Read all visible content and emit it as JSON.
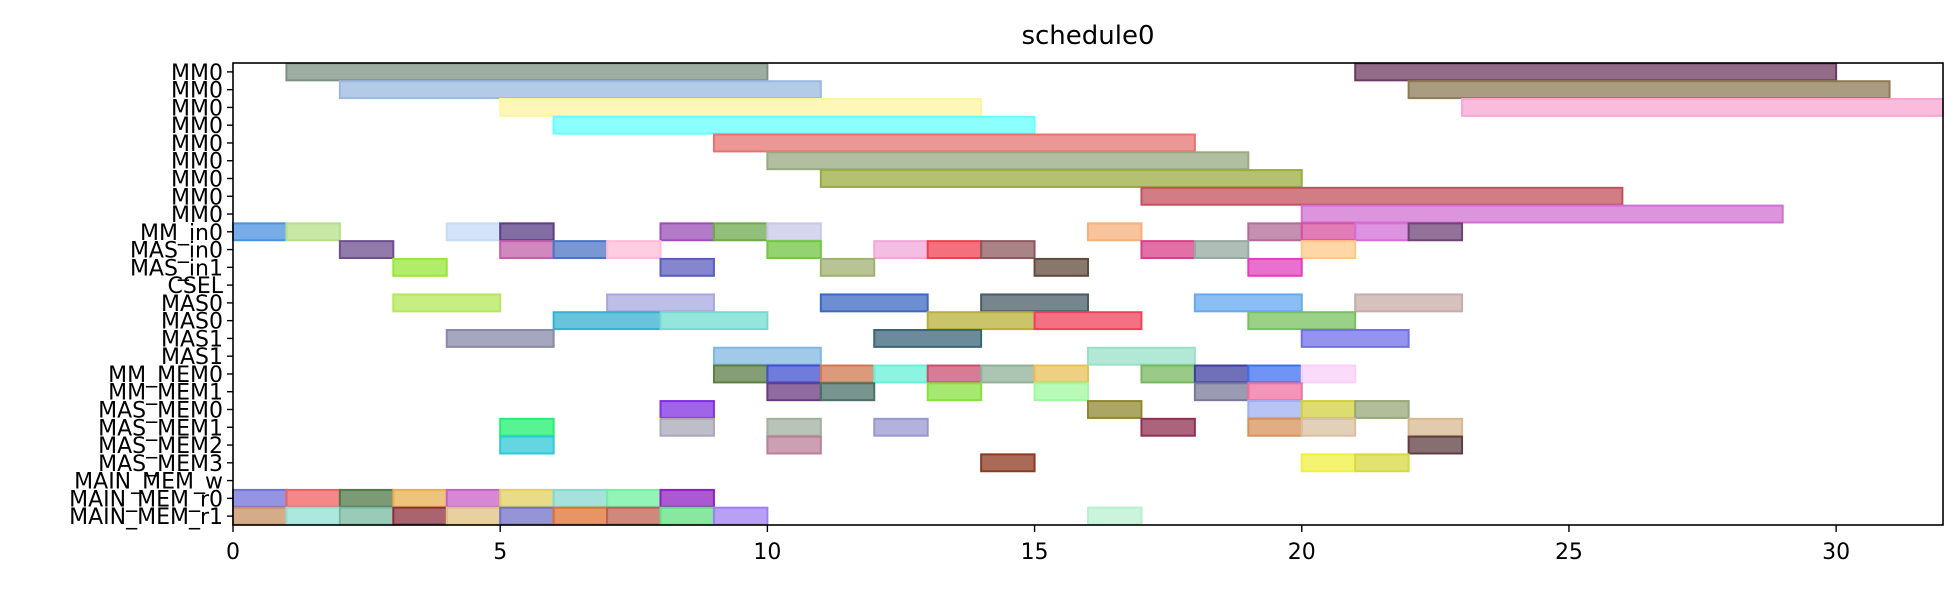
{
  "chart_data": {
    "type": "gantt",
    "title": "schedule0",
    "xlim": [
      0,
      32
    ],
    "x_ticks": [
      0,
      5,
      10,
      15,
      20,
      25,
      30
    ],
    "grid": false,
    "rows": [
      "MM0",
      "MM0",
      "MM0",
      "MM0",
      "MM0",
      "MM0",
      "MM0",
      "MM0",
      "MM0",
      "MM_in0",
      "MAS_in0",
      "MAS_in1",
      "CSEL",
      "MAS0",
      "MAS0",
      "MAS1",
      "MAS1",
      "MM_MEM0",
      "MM_MEM1",
      "MAS_MEM0",
      "MAS_MEM1",
      "MAS_MEM2",
      "MAS_MEM3",
      "MAIN_MEM_w",
      "MAIN_MEM_r0",
      "MAIN_MEM_r1"
    ],
    "tasks": [
      {
        "row": 0,
        "start": 1,
        "end": 10,
        "color": "#7d9183"
      },
      {
        "row": 0,
        "start": 21,
        "end": 30,
        "color": "#6e3b60"
      },
      {
        "row": 1,
        "start": 2,
        "end": 11,
        "color": "#9bb9e0"
      },
      {
        "row": 1,
        "start": 22,
        "end": 31,
        "color": "#8c7b55"
      },
      {
        "row": 2,
        "start": 5,
        "end": 14,
        "color": "#fff4a0"
      },
      {
        "row": 2,
        "start": 23,
        "end": 32,
        "color": "#f9a4d2"
      },
      {
        "row": 3,
        "start": 6,
        "end": 15,
        "color": "#66ffff"
      },
      {
        "row": 4,
        "start": 9,
        "end": 18,
        "color": "#e57373"
      },
      {
        "row": 5,
        "start": 10,
        "end": 19,
        "color": "#97aa80"
      },
      {
        "row": 6,
        "start": 11,
        "end": 20,
        "color": "#9aac40"
      },
      {
        "row": 7,
        "start": 17,
        "end": 26,
        "color": "#c3505d"
      },
      {
        "row": 8,
        "start": 20,
        "end": 29,
        "color": "#d070d0"
      },
      {
        "row": 9,
        "start": 0,
        "end": 1,
        "color": "#4a90e2"
      },
      {
        "row": 9,
        "start": 1,
        "end": 2,
        "color": "#b4e08a"
      },
      {
        "row": 9,
        "start": 4,
        "end": 5,
        "color": "#c6dbf5"
      },
      {
        "row": 9,
        "start": 5,
        "end": 6,
        "color": "#5a3d86"
      },
      {
        "row": 9,
        "start": 8,
        "end": 9,
        "color": "#9b4db8"
      },
      {
        "row": 9,
        "start": 9,
        "end": 10,
        "color": "#6daa4c"
      },
      {
        "row": 9,
        "start": 10,
        "end": 11,
        "color": "#c8c8ea"
      },
      {
        "row": 9,
        "start": 16,
        "end": 17,
        "color": "#f7b07a"
      },
      {
        "row": 9,
        "start": 19,
        "end": 20,
        "color": "#b06b98"
      },
      {
        "row": 9,
        "start": 20,
        "end": 21,
        "color": "#d8509f"
      },
      {
        "row": 9,
        "start": 21,
        "end": 22,
        "color": "#d36fd6"
      },
      {
        "row": 9,
        "start": 22,
        "end": 23,
        "color": "#6e4375"
      },
      {
        "row": 10,
        "start": 2,
        "end": 3,
        "color": "#6e4e8e"
      },
      {
        "row": 10,
        "start": 5,
        "end": 6,
        "color": "#c060a8"
      },
      {
        "row": 10,
        "start": 6,
        "end": 7,
        "color": "#4c74c4"
      },
      {
        "row": 10,
        "start": 7,
        "end": 8,
        "color": "#ffbcd8"
      },
      {
        "row": 10,
        "start": 10,
        "end": 11,
        "color": "#70c640"
      },
      {
        "row": 10,
        "start": 12,
        "end": 13,
        "color": "#f0a8d8"
      },
      {
        "row": 10,
        "start": 13,
        "end": 14,
        "color": "#f04050"
      },
      {
        "row": 10,
        "start": 14,
        "end": 15,
        "color": "#8c5a5e"
      },
      {
        "row": 10,
        "start": 17,
        "end": 18,
        "color": "#d84088"
      },
      {
        "row": 10,
        "start": 18,
        "end": 19,
        "color": "#94aaa0"
      },
      {
        "row": 10,
        "start": 20,
        "end": 21,
        "color": "#ffc888"
      },
      {
        "row": 11,
        "start": 3,
        "end": 4,
        "color": "#98e63a"
      },
      {
        "row": 11,
        "start": 8,
        "end": 9,
        "color": "#5c5cc0"
      },
      {
        "row": 11,
        "start": 11,
        "end": 12,
        "color": "#a0b070"
      },
      {
        "row": 11,
        "start": 15,
        "end": 16,
        "color": "#604a3a"
      },
      {
        "row": 11,
        "start": 19,
        "end": 20,
        "color": "#e040c0"
      },
      {
        "row": 13,
        "start": 3,
        "end": 5,
        "color": "#b4e858"
      },
      {
        "row": 13,
        "start": 7,
        "end": 9,
        "color": "#a8a8e0"
      },
      {
        "row": 13,
        "start": 11,
        "end": 13,
        "color": "#3c68c0"
      },
      {
        "row": 13,
        "start": 14,
        "end": 16,
        "color": "#4a5c68"
      },
      {
        "row": 13,
        "start": 18,
        "end": 20,
        "color": "#64aaf0"
      },
      {
        "row": 13,
        "start": 21,
        "end": 23,
        "color": "#c8aca8"
      },
      {
        "row": 14,
        "start": 6,
        "end": 8,
        "color": "#34b0d0"
      },
      {
        "row": 14,
        "start": 8,
        "end": 10,
        "color": "#70dcd0"
      },
      {
        "row": 14,
        "start": 13,
        "end": 15,
        "color": "#b8b038"
      },
      {
        "row": 14,
        "start": 15,
        "end": 17,
        "color": "#f0405a"
      },
      {
        "row": 14,
        "start": 19,
        "end": 21,
        "color": "#78c060"
      },
      {
        "row": 15,
        "start": 4,
        "end": 6,
        "color": "#8888a8"
      },
      {
        "row": 15,
        "start": 12,
        "end": 14,
        "color": "#3a6478"
      },
      {
        "row": 15,
        "start": 20,
        "end": 22,
        "color": "#7070e8"
      },
      {
        "row": 16,
        "start": 9,
        "end": 11,
        "color": "#80b8e0"
      },
      {
        "row": 16,
        "start": 16,
        "end": 18,
        "color": "#98e0c8"
      },
      {
        "row": 17,
        "start": 9,
        "end": 10,
        "color": "#5e7e44"
      },
      {
        "row": 17,
        "start": 10,
        "end": 11,
        "color": "#4050d0"
      },
      {
        "row": 17,
        "start": 11,
        "end": 12,
        "color": "#d07850"
      },
      {
        "row": 17,
        "start": 12,
        "end": 13,
        "color": "#68f0d8"
      },
      {
        "row": 17,
        "start": 13,
        "end": 14,
        "color": "#c85070"
      },
      {
        "row": 17,
        "start": 14,
        "end": 15,
        "color": "#90b098"
      },
      {
        "row": 17,
        "start": 15,
        "end": 16,
        "color": "#e8c058"
      },
      {
        "row": 17,
        "start": 17,
        "end": 18,
        "color": "#78b860"
      },
      {
        "row": 17,
        "start": 18,
        "end": 19,
        "color": "#4040a0"
      },
      {
        "row": 17,
        "start": 19,
        "end": 20,
        "color": "#4070f0"
      },
      {
        "row": 17,
        "start": 20,
        "end": 21,
        "color": "#f8d0f8"
      },
      {
        "row": 18,
        "start": 10,
        "end": 11,
        "color": "#6a3a80"
      },
      {
        "row": 18,
        "start": 11,
        "end": 12,
        "color": "#4a7068"
      },
      {
        "row": 18,
        "start": 13,
        "end": 14,
        "color": "#88e040"
      },
      {
        "row": 18,
        "start": 15,
        "end": 16,
        "color": "#a0f8a0"
      },
      {
        "row": 18,
        "start": 18,
        "end": 19,
        "color": "#787898"
      },
      {
        "row": 18,
        "start": 19,
        "end": 20,
        "color": "#f070a0"
      },
      {
        "row": 19,
        "start": 8,
        "end": 9,
        "color": "#8030e0"
      },
      {
        "row": 19,
        "start": 16,
        "end": 17,
        "color": "#908830"
      },
      {
        "row": 19,
        "start": 19,
        "end": 20,
        "color": "#a0b0f0"
      },
      {
        "row": 19,
        "start": 20,
        "end": 21,
        "color": "#d0d040"
      },
      {
        "row": 19,
        "start": 21,
        "end": 22,
        "color": "#98a878"
      },
      {
        "row": 20,
        "start": 5,
        "end": 6,
        "color": "#20f070"
      },
      {
        "row": 20,
        "start": 8,
        "end": 9,
        "color": "#a8a8b8"
      },
      {
        "row": 20,
        "start": 10,
        "end": 11,
        "color": "#a0b0a0"
      },
      {
        "row": 20,
        "start": 12,
        "end": 13,
        "color": "#9898d0"
      },
      {
        "row": 20,
        "start": 17,
        "end": 18,
        "color": "#903050"
      },
      {
        "row": 20,
        "start": 19,
        "end": 20,
        "color": "#d8905c"
      },
      {
        "row": 20,
        "start": 20,
        "end": 21,
        "color": "#d8c0a0"
      },
      {
        "row": 20,
        "start": 22,
        "end": 23,
        "color": "#d8b890"
      },
      {
        "row": 21,
        "start": 5,
        "end": 6,
        "color": "#30c8d8"
      },
      {
        "row": 21,
        "start": 10,
        "end": 11,
        "color": "#b88098"
      },
      {
        "row": 21,
        "start": 22,
        "end": 23,
        "color": "#5e3e42"
      },
      {
        "row": 22,
        "start": 14,
        "end": 15,
        "color": "#8c3a20"
      },
      {
        "row": 22,
        "start": 20,
        "end": 21,
        "color": "#f0f040"
      },
      {
        "row": 22,
        "start": 21,
        "end": 22,
        "color": "#d8d840"
      },
      {
        "row": 24,
        "start": 0,
        "end": 1,
        "color": "#7070d8"
      },
      {
        "row": 24,
        "start": 1,
        "end": 2,
        "color": "#f06060"
      },
      {
        "row": 24,
        "start": 2,
        "end": 3,
        "color": "#507848"
      },
      {
        "row": 24,
        "start": 3,
        "end": 4,
        "color": "#e8b050"
      },
      {
        "row": 24,
        "start": 4,
        "end": 5,
        "color": "#c860c8"
      },
      {
        "row": 24,
        "start": 5,
        "end": 6,
        "color": "#e0d060"
      },
      {
        "row": 24,
        "start": 6,
        "end": 7,
        "color": "#88d8d0"
      },
      {
        "row": 24,
        "start": 7,
        "end": 8,
        "color": "#70f0a0"
      },
      {
        "row": 24,
        "start": 8,
        "end": 9,
        "color": "#9020c0"
      },
      {
        "row": 25,
        "start": 0,
        "end": 1,
        "color": "#c89060"
      },
      {
        "row": 25,
        "start": 1,
        "end": 2,
        "color": "#90e0d0"
      },
      {
        "row": 25,
        "start": 2,
        "end": 3,
        "color": "#78b8a0"
      },
      {
        "row": 25,
        "start": 3,
        "end": 4,
        "color": "#8c3040"
      },
      {
        "row": 25,
        "start": 4,
        "end": 5,
        "color": "#e0c080"
      },
      {
        "row": 25,
        "start": 5,
        "end": 6,
        "color": "#7070c8"
      },
      {
        "row": 25,
        "start": 6,
        "end": 7,
        "color": "#e07030"
      },
      {
        "row": 25,
        "start": 7,
        "end": 8,
        "color": "#c06050"
      },
      {
        "row": 25,
        "start": 8,
        "end": 9,
        "color": "#60e080"
      },
      {
        "row": 25,
        "start": 9,
        "end": 10,
        "color": "#a080f0"
      },
      {
        "row": 25,
        "start": 16,
        "end": 17,
        "color": "#b8f0d0"
      }
    ]
  }
}
